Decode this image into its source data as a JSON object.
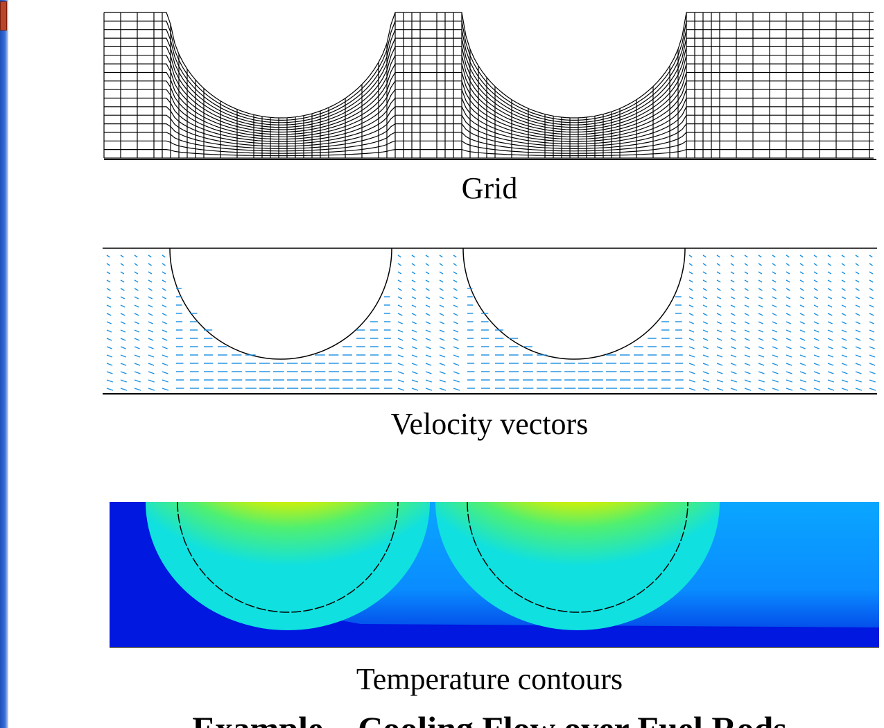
{
  "panels": [
    {
      "caption": "Grid"
    },
    {
      "caption": "Velocity vectors"
    },
    {
      "caption": "Temperature contours"
    }
  ],
  "title": "Example – Cooling Flow over Fuel Rods"
}
